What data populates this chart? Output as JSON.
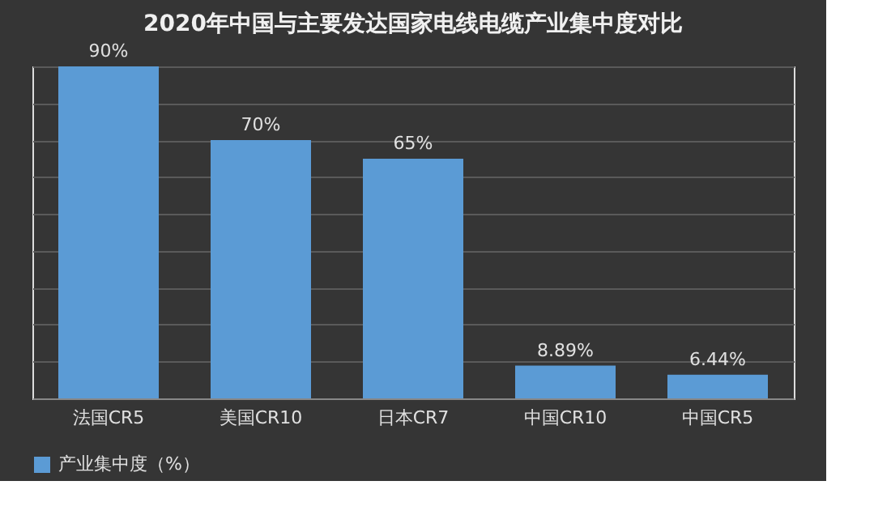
{
  "chart_data": {
    "type": "bar",
    "title": "2020年中国与主要发达国家电线电缆产业集中度对比",
    "categories": [
      "法国CR5",
      "美国CR10",
      "日本CR7",
      "中国CR10",
      "中国CR5"
    ],
    "series": [
      {
        "name": "产业集中度（%）",
        "color": "#5b9bd5",
        "values": [
          90,
          70,
          65,
          8.89,
          6.44
        ],
        "value_labels": [
          "90%",
          "70%",
          "65%",
          "8.89%",
          "6.44%"
        ]
      }
    ],
    "tick_labels": "x",
    "grid": "y",
    "legend": "bottom"
  }
}
